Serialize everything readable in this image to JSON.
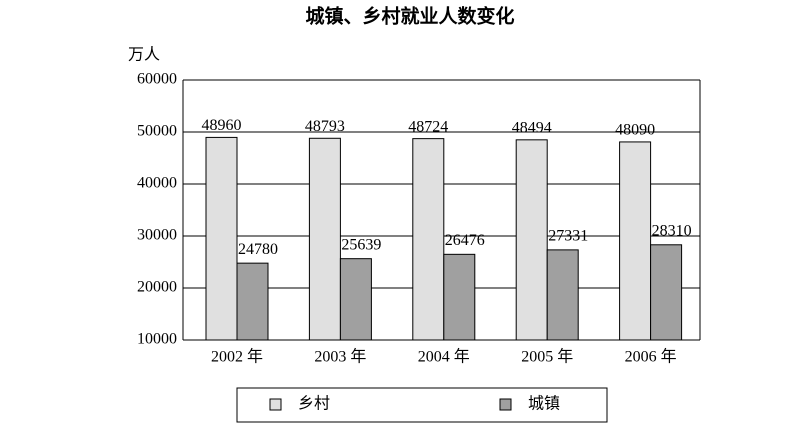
{
  "chart_data": {
    "type": "bar",
    "title": "城镇、乡村就业人数变化",
    "y_label": "万人",
    "categories": [
      "2002 年",
      "2003 年",
      "2004 年",
      "2005 年",
      "2006 年"
    ],
    "series": [
      {
        "name": "乡村",
        "color": "#e0e0e0",
        "values": [
          48960,
          48793,
          48724,
          48494,
          48090
        ]
      },
      {
        "name": "城镇",
        "color": "#a0a0a0",
        "values": [
          24780,
          25639,
          26476,
          27331,
          28310
        ]
      }
    ],
    "ylim": [
      10000,
      60000
    ],
    "yticks": [
      10000,
      20000,
      30000,
      40000,
      50000,
      60000
    ],
    "grid": true
  }
}
